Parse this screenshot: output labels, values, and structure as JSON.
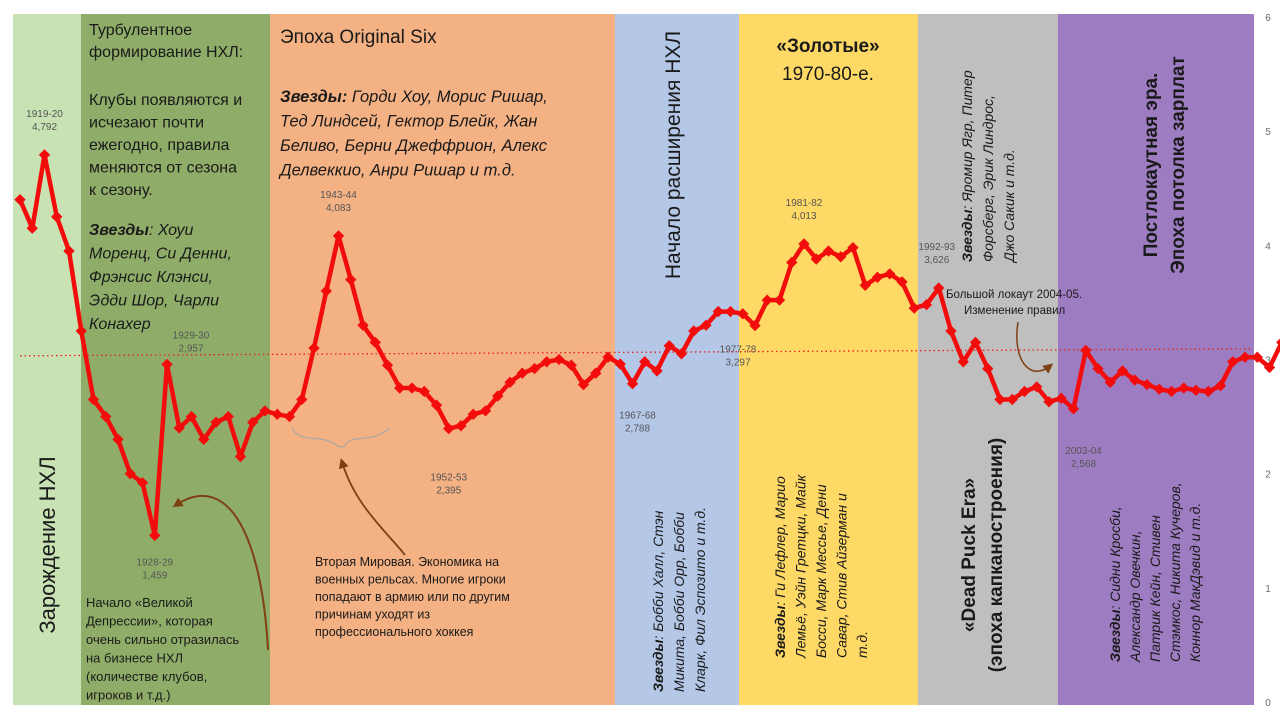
{
  "chart_data": {
    "type": "line",
    "y_axis": {
      "ylim": [
        0,
        6
      ],
      "ticks": [
        "0",
        "1",
        "2",
        "3",
        "4",
        "5",
        "6"
      ],
      "position": "right"
    },
    "average_line": {
      "value": 3.05,
      "style": "dotted",
      "color": "#e8211b"
    },
    "series": [
      {
        "color": "#f20c0c",
        "values": [
          4.4,
          4.15,
          4.792,
          4.25,
          3.95,
          3.25,
          2.65,
          2.5,
          2.3,
          2.0,
          1.92,
          1.459,
          2.957,
          2.4,
          2.5,
          2.3,
          2.45,
          2.5,
          2.15,
          2.45,
          2.55,
          2.52,
          2.5,
          2.65,
          3.1,
          3.6,
          4.083,
          3.7,
          3.3,
          3.15,
          2.95,
          2.75,
          2.75,
          2.72,
          2.6,
          2.395,
          2.42,
          2.52,
          2.55,
          2.68,
          2.8,
          2.88,
          2.92,
          2.98,
          3.0,
          2.95,
          2.78,
          2.88,
          3.02,
          2.96,
          2.788,
          2.98,
          2.9,
          3.12,
          3.05,
          3.25,
          3.3,
          3.42,
          3.42,
          3.4,
          3.297,
          3.52,
          3.52,
          3.85,
          4.013,
          3.88,
          3.95,
          3.9,
          3.98,
          3.65,
          3.72,
          3.75,
          3.68,
          3.45,
          3.48,
          3.626,
          3.25,
          2.98,
          3.15,
          2.92,
          2.65,
          2.65,
          2.72,
          2.76,
          2.63,
          2.66,
          2.568,
          3.08,
          2.92,
          2.8,
          2.9,
          2.82,
          2.78,
          2.74,
          2.72,
          2.75,
          2.73,
          2.72,
          2.77,
          2.98,
          3.02,
          3.02,
          2.93,
          3.15
        ]
      }
    ],
    "point_labels": [
      {
        "index": 2,
        "season": "1919-20",
        "value": "4,792"
      },
      {
        "index": 11,
        "season": "1928-29",
        "value": "1,459"
      },
      {
        "index": 12,
        "season": "1929-30",
        "value": "2,957"
      },
      {
        "index": 26,
        "season": "1943-44",
        "value": "4,083"
      },
      {
        "index": 35,
        "season": "1952-53",
        "value": "2,395"
      },
      {
        "index": 50,
        "season": "1967-68",
        "value": "2,788"
      },
      {
        "index": 60,
        "season": "1977-78",
        "value": "3,297"
      },
      {
        "index": 64,
        "season": "1981-82",
        "value": "4,013"
      },
      {
        "index": 75,
        "season": "1992-93",
        "value": "3,626"
      },
      {
        "index": 86,
        "season": "2003-04",
        "value": "2,568"
      }
    ],
    "eras": [
      {
        "id": "birth",
        "color": "#c9e2b4",
        "vertical_title": "Зарождение НХЛ",
        "title_lines": [],
        "subtitle_lines": [],
        "body_lines": [],
        "stars_label": "",
        "stars_lines": []
      },
      {
        "id": "turbulent",
        "color": "#8fad68",
        "title_lines": [
          "Турбулентное",
          "формирование НХЛ:"
        ],
        "body_lines": [
          "Клубы появляются и",
          "исчезают почти",
          "ежегодно, правила",
          "меняются от сезона",
          "к сезону."
        ],
        "stars_label": "Звезды",
        "stars_lines": [
          ": Хоуи",
          "Моренц, Си Денни,",
          "Фрэнсис Клэнси,",
          "Эдди Шор, Чарли",
          "Конахер"
        ],
        "note_lines": [
          "Начало «Великой",
          "Депрессии», которая",
          "очень сильно отразилась",
          "на бизнесе НХЛ",
          "(количестве клубов,",
          "игроков и т.д.)"
        ]
      },
      {
        "id": "original-six",
        "color": "#f4b183",
        "title_lines": [
          "Эпоха Original Six"
        ],
        "stars_label": "Звезды:",
        "stars_lines": [
          " Горди Хоу, Морис Ришар,",
          "Тед Линдсей, Гектор Блейк, Жан",
          "Беливо, Берни Джеффрион, Алекс",
          "Делвеккио, Анри Ришар и т.д."
        ],
        "note_lines": [
          "Вторая Мировая. Экономика на",
          "военных рельсах. Многие игроки",
          "попадают в армию или по другим",
          "причинам уходят из",
          "профессионального хоккея"
        ]
      },
      {
        "id": "expansion",
        "color": "#b4c7e7",
        "vertical_title": "Начало расширения НХЛ",
        "stars_label": "Звезды",
        "stars_lines": [
          ": Бобби Халл, Стэн",
          "Микита, Бобби Орр, Бобби",
          "Кларк, Фил Эспозито и т.д."
        ]
      },
      {
        "id": "golden",
        "color": "#ffd966",
        "title_lines": [
          "«Золотые»",
          "1970-80-е."
        ],
        "stars_label": "Звезды",
        "stars_lines": [
          ": Ги Лефлер, Марио",
          "Лемьё, Уэйн Гретцки, Майк",
          "Босси, Марк Мессье, Дени",
          "Савар, Стив Айзерман и",
          "т.д."
        ]
      },
      {
        "id": "dead-puck",
        "color": "#bfbfbf",
        "vertical_title_lines": [
          "«Dead Puck Era»",
          "(эпоха капканостроения)"
        ],
        "stars_label": "Звезды",
        "stars_lines": [
          ": Яромир Ягр, Питер",
          "Форсберг, Эрик Линдрос,",
          "Джо Сакик и т.д."
        ]
      },
      {
        "id": "post-lockout",
        "color": "#9e7cc1",
        "vertical_title_lines": [
          "Постлокаутная эра.",
          "Эпоха потолка зарплат"
        ],
        "stars_label": "Звезды",
        "stars_lines": [
          ": Сидни Кросби,",
          "Александр Овечкин,",
          "Патрик Кейн, Стивен",
          "Стэмкос, Никита Кучеров,",
          "Коннор МакДэвид и т.д."
        ]
      }
    ],
    "annotations": [
      {
        "id": "lockout",
        "lines": [
          "Большой локаут 2004-05.",
          "Изменение  правил"
        ]
      }
    ],
    "arrow_color": "#7f4014",
    "xlabel": "",
    "ylabel": "",
    "title": ""
  }
}
